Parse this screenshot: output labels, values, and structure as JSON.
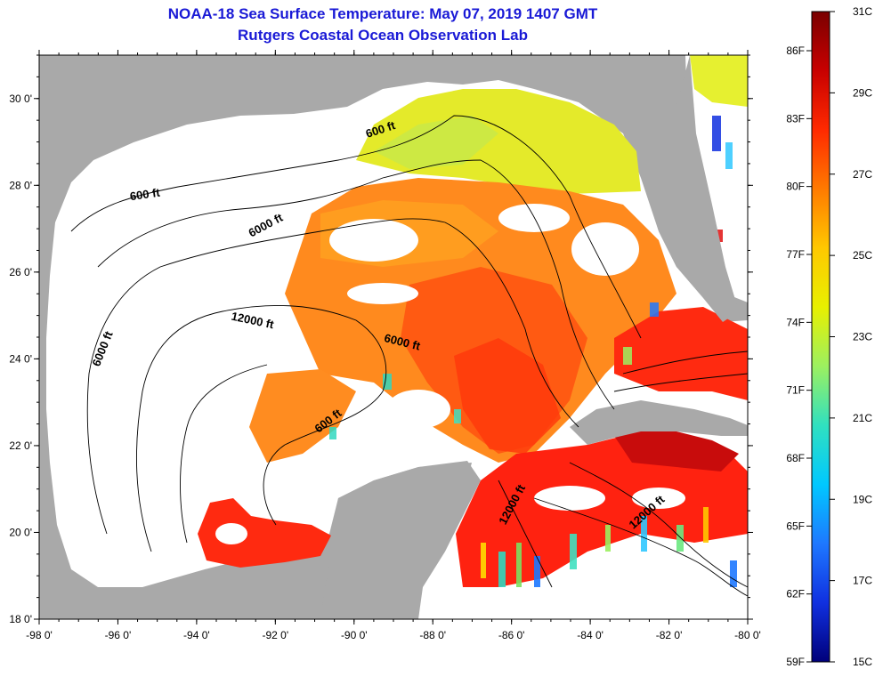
{
  "title": "NOAA-18 Sea Surface Temperature:  May 07, 2019 1407 GMT",
  "subtitle": "Rutgers Coastal Ocean Observation Lab",
  "map": {
    "lon_range": [
      -98,
      -80
    ],
    "lat_range": [
      18,
      31
    ],
    "x_ticks": [
      {
        "value": -98,
        "label": "-98 0'"
      },
      {
        "value": -96,
        "label": "-96 0'"
      },
      {
        "value": -94,
        "label": "-94 0'"
      },
      {
        "value": -92,
        "label": "-92 0'"
      },
      {
        "value": -90,
        "label": "-90 0'"
      },
      {
        "value": -88,
        "label": "-88 0'"
      },
      {
        "value": -86,
        "label": "-86 0'"
      },
      {
        "value": -84,
        "label": "-84 0'"
      },
      {
        "value": -82,
        "label": "-82 0'"
      },
      {
        "value": -80,
        "label": "-80 0'"
      }
    ],
    "y_ticks": [
      {
        "value": 30,
        "label": "30 0'"
      },
      {
        "value": 28,
        "label": "28 0'"
      },
      {
        "value": 26,
        "label": "26 0'"
      },
      {
        "value": 24,
        "label": "24 0'"
      },
      {
        "value": 22,
        "label": "22 0'"
      },
      {
        "value": 20,
        "label": "20 0'"
      },
      {
        "value": 18,
        "label": "18 0'"
      }
    ],
    "contour_labels": [
      {
        "text": "600 ft",
        "lon": -89.3,
        "lat": 29.2,
        "rotate": -18
      },
      {
        "text": "600 ft",
        "lon": -95.3,
        "lat": 27.7,
        "rotate": -8
      },
      {
        "text": "6000 ft",
        "lon": -92.2,
        "lat": 27.0,
        "rotate": -28
      },
      {
        "text": "12000 ft",
        "lon": -92.6,
        "lat": 24.8,
        "rotate": 12
      },
      {
        "text": "6000 ft",
        "lon": -96.3,
        "lat": 24.2,
        "rotate": -68
      },
      {
        "text": "6000 ft",
        "lon": -88.8,
        "lat": 24.3,
        "rotate": 14
      },
      {
        "text": "600 ft",
        "lon": -90.6,
        "lat": 22.5,
        "rotate": -38
      },
      {
        "text": "12000 ft",
        "lon": -85.9,
        "lat": 20.6,
        "rotate": -62
      },
      {
        "text": "12000 ft",
        "lon": -82.5,
        "lat": 20.4,
        "rotate": -42
      }
    ]
  },
  "colorbar": {
    "f_labels": [
      "86F",
      "83F",
      "80F",
      "77F",
      "74F",
      "71F",
      "68F",
      "65F",
      "62F",
      "59F"
    ],
    "c_labels": [
      "31C",
      "29C",
      "27C",
      "25C",
      "23C",
      "21C",
      "19C",
      "17C",
      "15C"
    ],
    "colors": [
      "#7a0000",
      "#c80000",
      "#ff2a00",
      "#ff7a00",
      "#ffc800",
      "#e8f000",
      "#9cf060",
      "#30e0c0",
      "#00c8ff",
      "#1e78ff",
      "#1030e0",
      "#00007a"
    ]
  }
}
